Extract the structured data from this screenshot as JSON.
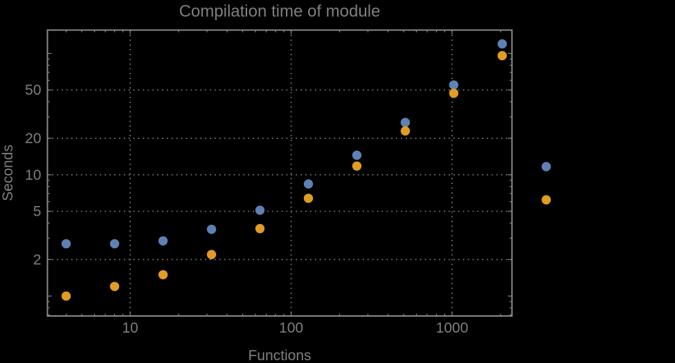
{
  "background_color": "#000000",
  "text_color": "#7f7f7f",
  "frame_color": "#8a8a8a",
  "grid_color": "#7d7d7d",
  "chart_data": {
    "type": "scatter",
    "title": "Compilation time of module",
    "xlabel": "Functions",
    "ylabel": "Seconds",
    "xscale": "log",
    "yscale": "log",
    "xlim": [
      3.06,
      2355
    ],
    "ylim": [
      0.685,
      156
    ],
    "grid": "dotted",
    "legend_position": "right-of-frame",
    "x": [
      4,
      8,
      16,
      32,
      64,
      128,
      256,
      512,
      1024,
      2048
    ],
    "series": [
      {
        "name": "blue-series",
        "color": "#5e81b5",
        "values": [
          2.7,
          2.7,
          2.85,
          3.55,
          5.1,
          8.4,
          14.5,
          27,
          55,
          120
        ]
      },
      {
        "name": "orange-series",
        "color": "#e19c24",
        "values": [
          1.0,
          1.2,
          1.5,
          2.2,
          3.6,
          6.4,
          11.8,
          23,
          47,
          96
        ]
      }
    ],
    "x_tick_labels": [
      "10",
      "100",
      "1000"
    ],
    "x_tick_values": [
      10,
      100,
      1000
    ],
    "y_tick_labels": [
      "2",
      "5",
      "10",
      "20",
      "50"
    ],
    "y_tick_values": [
      2,
      5,
      10,
      20,
      50
    ],
    "legend_markers": [
      {
        "series": "blue-series",
        "color": "#5e81b5"
      },
      {
        "series": "orange-series",
        "color": "#e19c24"
      }
    ]
  }
}
